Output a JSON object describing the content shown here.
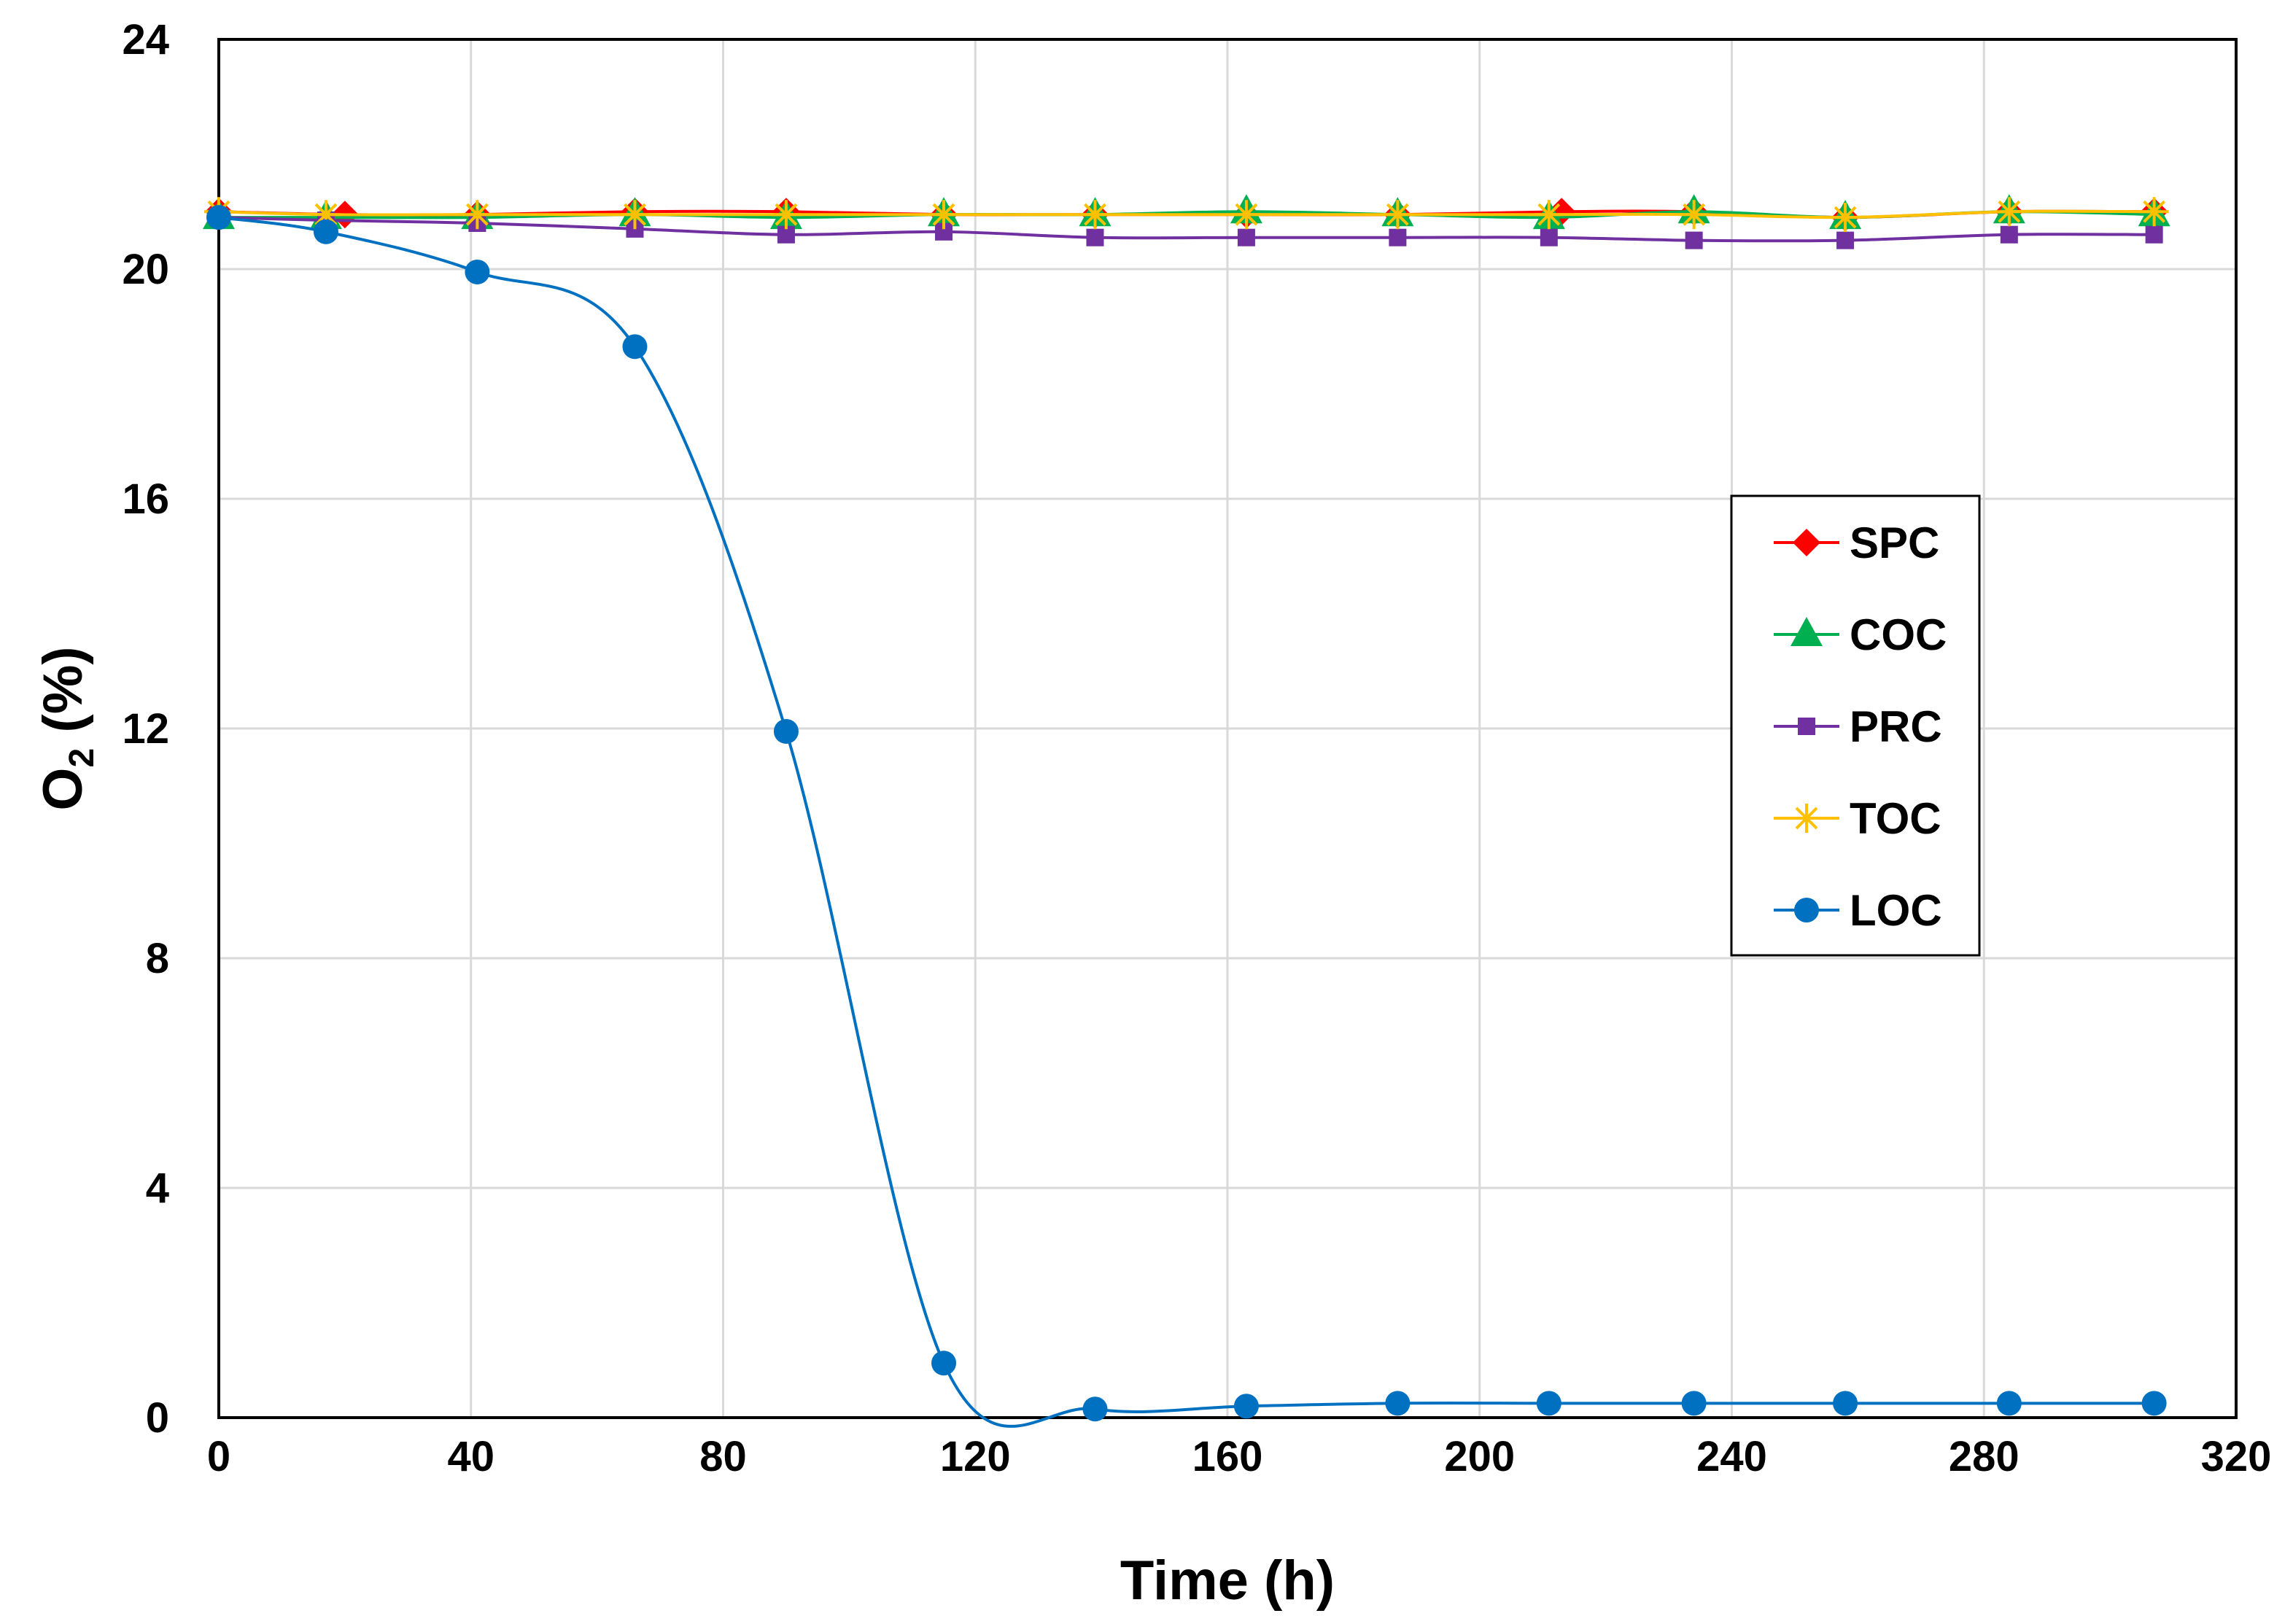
{
  "chart_data": {
    "type": "line",
    "title": "",
    "xlabel": "Time (h)",
    "ylabel_main": "O",
    "ylabel_sub": "2",
    "ylabel_suffix": " (%)",
    "xlim": [
      0,
      320
    ],
    "ylim": [
      0,
      24
    ],
    "x_ticks": [
      0,
      40,
      80,
      120,
      160,
      200,
      240,
      280,
      320
    ],
    "y_ticks": [
      0,
      4,
      8,
      12,
      16,
      20,
      24
    ],
    "grid": true,
    "legend_position": "right",
    "series": [
      {
        "name": "SPC",
        "color": "#ff0000",
        "marker": "diamond",
        "x": [
          0,
          20,
          41,
          66,
          90,
          115,
          139,
          163,
          187,
          213,
          234,
          258,
          284,
          307
        ],
        "y": [
          21.0,
          20.95,
          20.95,
          21.0,
          21.0,
          20.95,
          20.95,
          20.95,
          20.95,
          21.0,
          21.0,
          20.9,
          21.0,
          21.0
        ]
      },
      {
        "name": "COC",
        "color": "#00b050",
        "marker": "triangle",
        "x": [
          0,
          17,
          41,
          66,
          90,
          115,
          139,
          163,
          187,
          211,
          234,
          258,
          284,
          307
        ],
        "y": [
          20.9,
          20.9,
          20.9,
          20.95,
          20.9,
          20.95,
          20.95,
          21.0,
          20.95,
          20.9,
          21.0,
          20.9,
          21.0,
          20.95
        ]
      },
      {
        "name": "PRC",
        "color": "#7030a0",
        "marker": "square",
        "x": [
          0,
          17,
          41,
          66,
          90,
          115,
          139,
          163,
          187,
          211,
          234,
          258,
          284,
          307
        ],
        "y": [
          20.9,
          20.85,
          20.8,
          20.7,
          20.6,
          20.65,
          20.55,
          20.55,
          20.55,
          20.55,
          20.5,
          20.5,
          20.6,
          20.6
        ]
      },
      {
        "name": "TOC",
        "color": "#ffc000",
        "marker": "star",
        "x": [
          0,
          17,
          41,
          66,
          90,
          115,
          139,
          163,
          187,
          211,
          234,
          258,
          284,
          307
        ],
        "y": [
          21.0,
          20.95,
          20.95,
          20.95,
          20.95,
          20.95,
          20.95,
          20.95,
          20.95,
          20.95,
          20.95,
          20.9,
          21.0,
          21.0
        ]
      },
      {
        "name": "LOC",
        "color": "#0070c0",
        "marker": "circle",
        "x": [
          0,
          17,
          41,
          66,
          90,
          115,
          139,
          163,
          187,
          211,
          234,
          258,
          284,
          307
        ],
        "y": [
          20.9,
          20.65,
          19.95,
          18.65,
          11.95,
          0.95,
          0.15,
          0.2,
          0.25,
          0.25,
          0.25,
          0.25,
          0.25,
          0.25
        ]
      }
    ]
  }
}
